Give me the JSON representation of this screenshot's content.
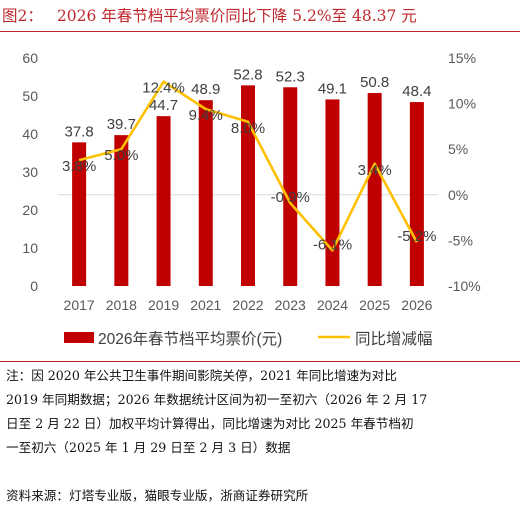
{
  "header": {
    "figure_label": "图2：",
    "title": "2026 年春节档平均票价同比下降 5.2%至 48.37 元"
  },
  "chart_data": {
    "type": "bar",
    "categories": [
      "2017",
      "2018",
      "2019",
      "2021",
      "2022",
      "2023",
      "2024",
      "2025",
      "2026"
    ],
    "series": [
      {
        "name": "2026年春节档平均票价(元)",
        "type": "bar",
        "axis": "left",
        "color": "#c00000",
        "values": [
          37.8,
          39.7,
          44.7,
          48.9,
          52.8,
          52.3,
          49.1,
          50.8,
          48.4
        ],
        "labels": [
          "37.8",
          "39.7",
          "44.7",
          "48.9",
          "52.8",
          "52.3",
          "49.1",
          "50.8",
          "48.4"
        ]
      },
      {
        "name": "同比增减幅",
        "type": "line",
        "axis": "right",
        "color": "#ffc000",
        "values": [
          3.8,
          5.0,
          12.4,
          9.4,
          8.0,
          -0.9,
          -6.1,
          3.4,
          -5.2
        ],
        "labels": [
          "3.8%",
          "5.0%",
          "12.4%",
          "9.4%",
          "8.0%",
          "-0.9%",
          "-6.1%",
          "3.4%",
          "-5.2%"
        ]
      }
    ],
    "ylim": [
      0,
      60
    ],
    "y_ticks": [
      "0",
      "10",
      "20",
      "30",
      "40",
      "50",
      "60"
    ],
    "y2lim": [
      -10,
      15
    ],
    "y2_ticks": [
      "-10%",
      "-5%",
      "0%",
      "5%",
      "10%",
      "15%"
    ],
    "grid": false,
    "legend_position": "bottom"
  },
  "footer": {
    "note_lines": [
      "注：因 2020 年公共卫生事件期间影院关停，2021 年同比增速为对比",
      "2019 年同期数据；2026 年数据统计区间为初一至初六（2026 年 2 月 17",
      "日至 2 月 22 日）加权平均计算得出，同比增速为对比 2025 年春节档初",
      "一至初六（2025 年 1 月 29 日至 2 月 3 日）数据"
    ],
    "source": "资料来源：灯塔专业版，猫眼专业版，浙商证券研究所"
  }
}
